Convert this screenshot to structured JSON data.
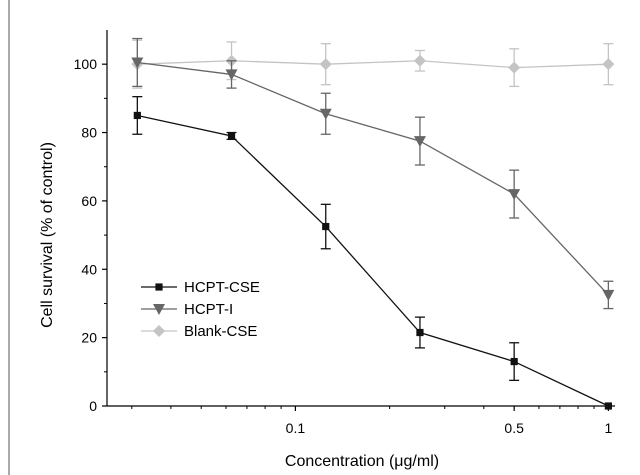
{
  "chart_data": {
    "type": "line",
    "xlabel": "Concentration (μg/ml)",
    "ylabel": "Cell survival (% of control)",
    "x_scale": "log",
    "xlim": [
      0.025,
      1.05
    ],
    "ylim": [
      0,
      110
    ],
    "x_tick_labels": [
      {
        "value": 0.1,
        "label": "0.1"
      },
      {
        "value": 0.5,
        "label": "0.5"
      },
      {
        "value": 1,
        "label": "1"
      }
    ],
    "y_ticks": [
      0,
      20,
      40,
      60,
      80,
      100
    ],
    "grid": false,
    "legend_position": "bottom-left",
    "series": [
      {
        "name": "HCPT-CSE",
        "color": "#111111",
        "marker": "square",
        "x": [
          0.03125,
          0.0625,
          0.125,
          0.25,
          0.5,
          1
        ],
        "y": [
          85,
          79,
          52.5,
          21.5,
          13,
          0
        ],
        "err": [
          5.5,
          1,
          6.5,
          4.5,
          5.5,
          0
        ]
      },
      {
        "name": "HCPT-I",
        "color": "#666666",
        "marker": "triangle-down",
        "x": [
          0.03125,
          0.0625,
          0.125,
          0.25,
          0.5,
          1
        ],
        "y": [
          100.5,
          97,
          85.5,
          77.5,
          62,
          32.5
        ],
        "err": [
          7,
          4,
          6,
          7,
          7,
          4
        ]
      },
      {
        "name": "Blank-CSE",
        "color": "#c4c4c4",
        "marker": "diamond",
        "x": [
          0.03125,
          0.0625,
          0.125,
          0.25,
          0.5,
          1
        ],
        "y": [
          100,
          101,
          100,
          101,
          99,
          100
        ],
        "err": [
          7,
          5.5,
          6,
          3,
          5.5,
          6
        ]
      }
    ]
  }
}
